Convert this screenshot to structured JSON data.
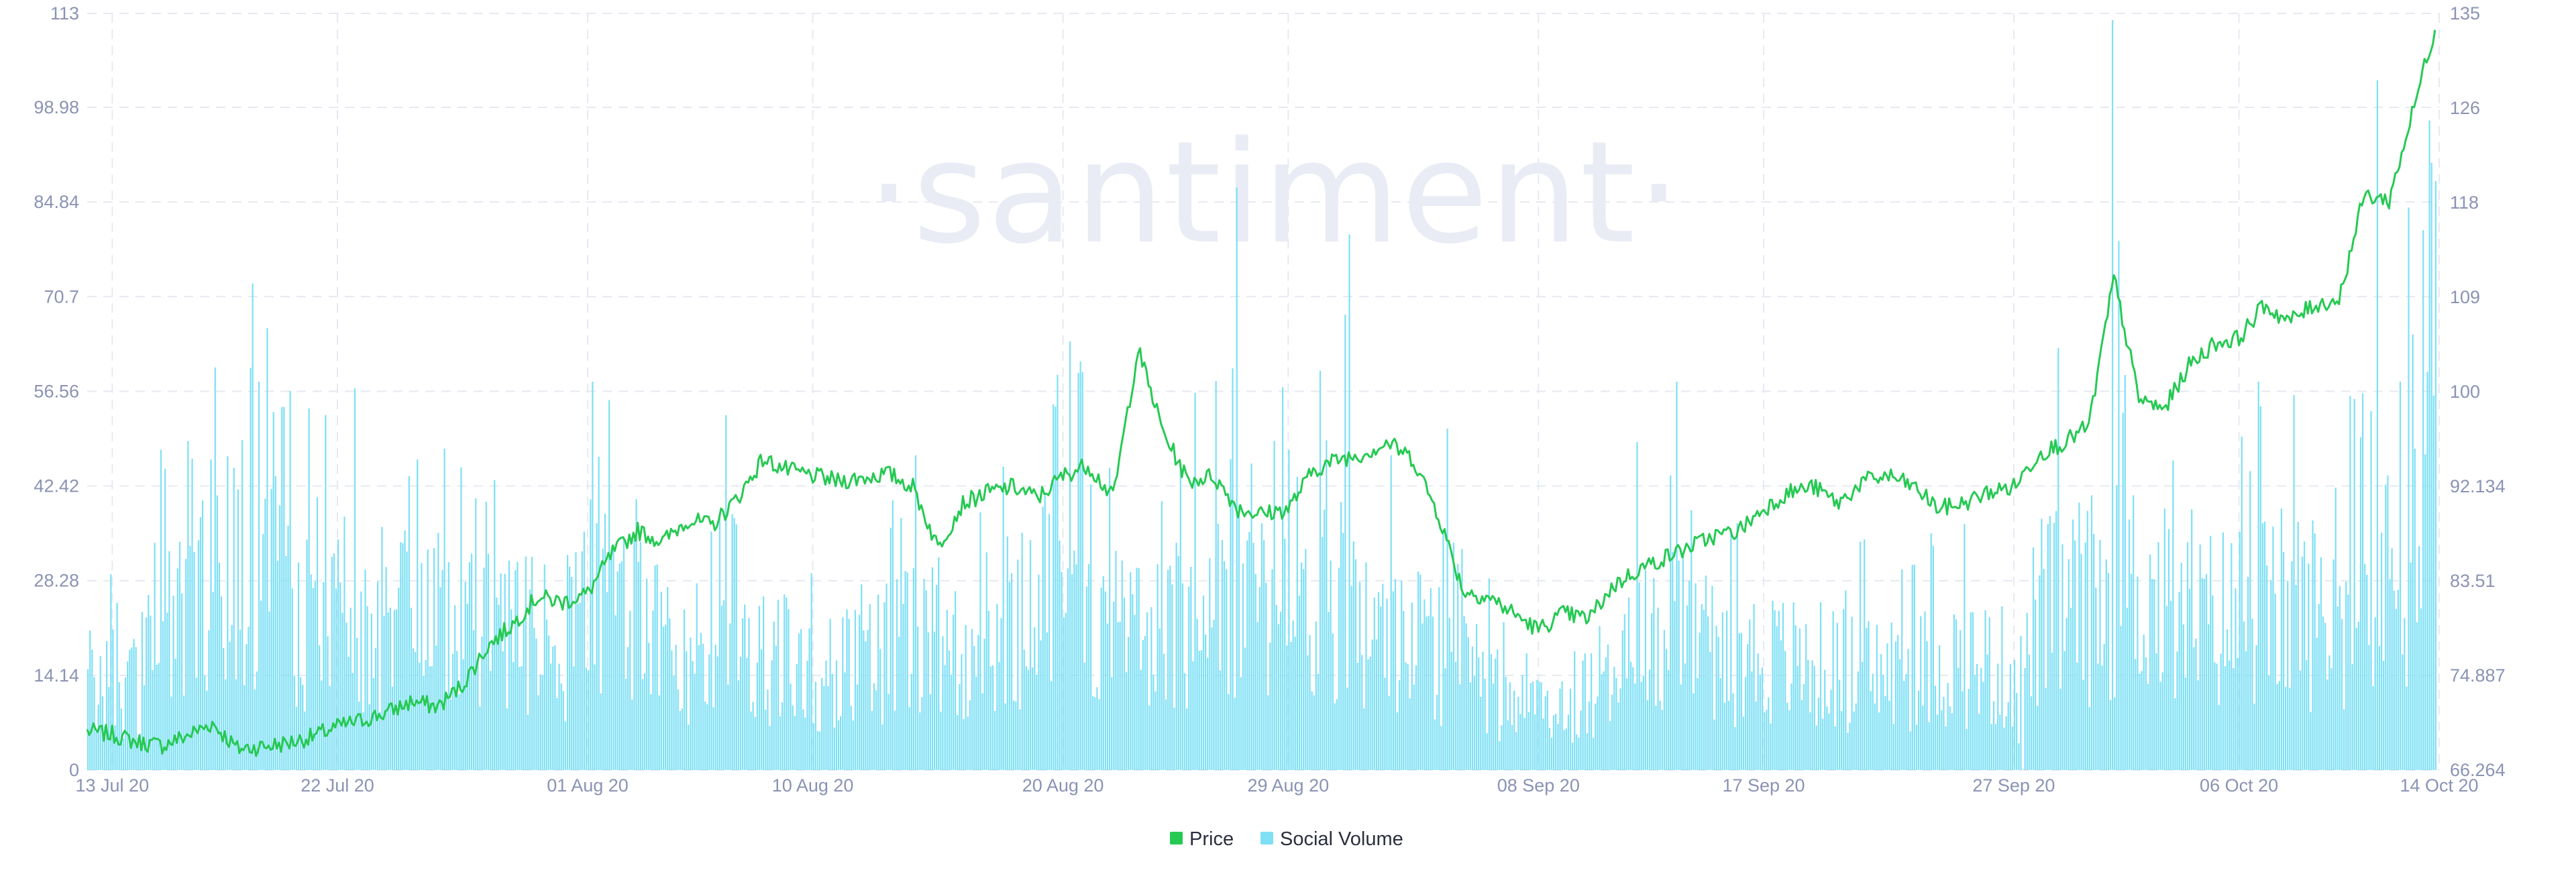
{
  "watermark": "·santiment·",
  "colors": {
    "price": "#26c953",
    "social_volume": "#7fe0f5",
    "grid": "#e6e9f1",
    "tick_text": "#8a93b4"
  },
  "chart_data": {
    "type": "bar+line",
    "title": "",
    "x_start": "2020-07-12",
    "x_end": "2020-10-14",
    "x_ticks": [
      "13 Jul 20",
      "22 Jul 20",
      "01 Aug 20",
      "10 Aug 20",
      "20 Aug 20",
      "29 Aug 20",
      "08 Sep 20",
      "17 Sep 20",
      "27 Sep 20",
      "06 Oct 20",
      "14 Oct 20"
    ],
    "left_axis": {
      "series": "Social Volume",
      "range": [
        0,
        113
      ],
      "ticks": [
        "0",
        "14.14",
        "28.28",
        "42.42",
        "56.56",
        "70.7",
        "84.84",
        "98.98",
        "113"
      ]
    },
    "right_axis": {
      "series": "Price",
      "range": [
        66.264,
        135
      ],
      "ticks": [
        "66.264",
        "74.887",
        "83.51",
        "92.134",
        "100",
        "109",
        "118",
        "126",
        "135"
      ]
    },
    "grid": true,
    "legend": {
      "position": "bottom-center",
      "items": [
        {
          "label": "Price",
          "color": "#26c953"
        },
        {
          "label": "Social Volume",
          "color": "#7fe0f5"
        }
      ]
    },
    "series": [
      {
        "name": "Social Volume",
        "type": "bar",
        "axis": "left",
        "resolution": "~2h",
        "keyframes": [
          [
            "2020-07-12",
            14
          ],
          [
            "2020-07-14",
            13
          ],
          [
            "2020-07-15",
            28
          ],
          [
            "2020-07-16",
            31
          ],
          [
            "2020-07-17",
            26
          ],
          [
            "2020-07-18",
            32
          ],
          [
            "2020-07-19",
            34
          ],
          [
            "2020-07-20",
            26
          ],
          [
            "2020-07-22",
            22
          ],
          [
            "2020-07-24",
            20
          ],
          [
            "2020-07-25",
            24
          ],
          [
            "2020-07-27",
            22
          ],
          [
            "2020-07-29",
            20
          ],
          [
            "2020-07-31",
            20
          ],
          [
            "2020-08-01",
            27
          ],
          [
            "2020-08-03",
            22
          ],
          [
            "2020-08-05",
            19
          ],
          [
            "2020-08-07",
            18
          ],
          [
            "2020-08-10",
            16
          ],
          [
            "2020-08-12",
            18
          ],
          [
            "2020-08-15",
            20
          ],
          [
            "2020-08-18",
            22
          ],
          [
            "2020-08-20",
            33
          ],
          [
            "2020-08-21",
            24
          ],
          [
            "2020-08-24",
            22
          ],
          [
            "2020-08-26",
            27
          ],
          [
            "2020-08-28",
            24
          ],
          [
            "2020-08-30",
            30
          ],
          [
            "2020-09-01",
            22
          ],
          [
            "2020-09-03",
            21
          ],
          [
            "2020-09-05",
            16
          ],
          [
            "2020-09-07",
            9
          ],
          [
            "2020-09-09",
            10
          ],
          [
            "2020-09-11",
            16
          ],
          [
            "2020-09-13",
            22
          ],
          [
            "2020-09-15",
            19
          ],
          [
            "2020-09-17",
            17
          ],
          [
            "2020-09-19",
            16
          ],
          [
            "2020-09-21",
            15
          ],
          [
            "2020-09-23",
            15
          ],
          [
            "2020-09-25",
            17
          ],
          [
            "2020-09-27",
            15
          ],
          [
            "2020-09-28",
            24
          ],
          [
            "2020-09-30",
            26
          ],
          [
            "2020-10-02",
            28
          ],
          [
            "2020-10-04",
            22
          ],
          [
            "2020-10-06",
            24
          ],
          [
            "2020-10-08",
            25
          ],
          [
            "2020-10-10",
            24
          ],
          [
            "2020-10-12",
            28
          ],
          [
            "2020-10-13",
            35
          ],
          [
            "2020-10-13T12:00",
            40
          ]
        ],
        "spikes": [
          [
            "2020-07-19T04:00",
            66
          ],
          [
            "2020-07-18T20:00",
            58
          ],
          [
            "2020-07-20T20:00",
            54
          ],
          [
            "2020-07-21T12:00",
            53
          ],
          [
            "2020-07-22T16:00",
            57
          ],
          [
            "2020-07-26T06:00",
            48
          ],
          [
            "2020-08-01T04:00",
            58
          ],
          [
            "2020-08-06T12:00",
            53
          ],
          [
            "2020-08-14T02:00",
            47
          ],
          [
            "2020-08-20T06:00",
            64
          ],
          [
            "2020-08-20T16:00",
            61
          ],
          [
            "2020-08-26T22:00",
            87
          ],
          [
            "2020-08-26T18:00",
            60
          ],
          [
            "2020-08-31T06:00",
            68
          ],
          [
            "2020-08-31T10:00",
            80
          ],
          [
            "2020-09-04T08:00",
            51
          ],
          [
            "2020-09-11T22:00",
            49
          ],
          [
            "2020-09-13T12:00",
            58
          ],
          [
            "2020-09-27T04:00",
            4
          ],
          [
            "2020-09-27T08:00",
            0
          ],
          [
            "2020-09-28T18:00",
            63
          ],
          [
            "2020-09-30T22:00",
            112
          ],
          [
            "2020-10-01T04:00",
            79
          ],
          [
            "2020-10-01T10:00",
            59
          ],
          [
            "2020-10-06T18:00",
            58
          ],
          [
            "2020-10-08T04:00",
            56
          ],
          [
            "2020-10-11T12:00",
            103
          ],
          [
            "2020-10-11T22:00",
            44
          ],
          [
            "2020-10-12T10:00",
            58
          ],
          [
            "2020-10-12T18:00",
            84
          ],
          [
            "2020-10-13T14:00",
            97
          ],
          [
            "2020-10-13T20:00",
            88
          ]
        ]
      },
      {
        "name": "Price",
        "type": "line",
        "axis": "right",
        "points": [
          [
            "2020-07-12",
            69.8
          ],
          [
            "2020-07-13",
            69.5
          ],
          [
            "2020-07-14",
            68.8
          ],
          [
            "2020-07-15",
            68.5
          ],
          [
            "2020-07-16",
            69.4
          ],
          [
            "2020-07-17",
            70.5
          ],
          [
            "2020-07-18",
            68.2
          ],
          [
            "2020-07-19",
            68.4
          ],
          [
            "2020-07-20",
            68.7
          ],
          [
            "2020-07-21",
            69.3
          ],
          [
            "2020-07-22",
            70.2
          ],
          [
            "2020-07-23",
            70.8
          ],
          [
            "2020-07-24",
            71.5
          ],
          [
            "2020-07-25",
            72.5
          ],
          [
            "2020-07-26",
            72.0
          ],
          [
            "2020-07-27",
            74.0
          ],
          [
            "2020-07-28",
            77.5
          ],
          [
            "2020-07-29",
            79.5
          ],
          [
            "2020-07-30",
            82.0
          ],
          [
            "2020-07-31",
            81.5
          ],
          [
            "2020-08-01",
            82.3
          ],
          [
            "2020-08-02",
            86.0
          ],
          [
            "2020-08-03",
            88.0
          ],
          [
            "2020-08-04",
            87.0
          ],
          [
            "2020-08-05",
            89.0
          ],
          [
            "2020-08-06",
            88.5
          ],
          [
            "2020-08-07",
            91.0
          ],
          [
            "2020-08-08",
            94.5
          ],
          [
            "2020-08-09",
            93.5
          ],
          [
            "2020-08-10",
            93.0
          ],
          [
            "2020-08-11",
            92.5
          ],
          [
            "2020-08-12",
            92.8
          ],
          [
            "2020-08-13",
            93.2
          ],
          [
            "2020-08-14",
            92.0
          ],
          [
            "2020-08-15",
            86.5
          ],
          [
            "2020-08-16",
            90.5
          ],
          [
            "2020-08-17",
            91.5
          ],
          [
            "2020-08-18",
            92.0
          ],
          [
            "2020-08-19",
            91.0
          ],
          [
            "2020-08-20",
            93.0
          ],
          [
            "2020-08-21",
            94.0
          ],
          [
            "2020-08-22",
            91.0
          ],
          [
            "2020-08-23",
            104.5
          ],
          [
            "2020-08-24",
            97.0
          ],
          [
            "2020-08-25",
            92.5
          ],
          [
            "2020-08-26",
            93.0
          ],
          [
            "2020-08-27",
            90.0
          ],
          [
            "2020-08-28",
            89.5
          ],
          [
            "2020-08-29",
            90.0
          ],
          [
            "2020-08-30",
            93.5
          ],
          [
            "2020-08-31",
            94.5
          ],
          [
            "2020-09-01",
            95.0
          ],
          [
            "2020-09-02",
            96.0
          ],
          [
            "2020-09-03",
            94.5
          ],
          [
            "2020-09-04",
            89.5
          ],
          [
            "2020-09-05",
            82.5
          ],
          [
            "2020-09-06",
            82.0
          ],
          [
            "2020-09-07",
            80.5
          ],
          [
            "2020-09-08",
            79.0
          ],
          [
            "2020-09-09",
            80.5
          ],
          [
            "2020-09-10",
            80.0
          ],
          [
            "2020-09-11",
            83.0
          ],
          [
            "2020-09-12",
            84.5
          ],
          [
            "2020-09-13",
            85.5
          ],
          [
            "2020-09-14",
            86.5
          ],
          [
            "2020-09-15",
            87.5
          ],
          [
            "2020-09-16",
            88.0
          ],
          [
            "2020-09-17",
            90.0
          ],
          [
            "2020-09-18",
            91.5
          ],
          [
            "2020-09-19",
            92.0
          ],
          [
            "2020-09-20",
            90.5
          ],
          [
            "2020-09-21",
            92.5
          ],
          [
            "2020-09-22",
            93.0
          ],
          [
            "2020-09-23",
            92.0
          ],
          [
            "2020-09-24",
            90.0
          ],
          [
            "2020-09-25",
            90.5
          ],
          [
            "2020-09-26",
            91.5
          ],
          [
            "2020-09-27",
            92.0
          ],
          [
            "2020-09-28",
            95.0
          ],
          [
            "2020-09-29",
            96.0
          ],
          [
            "2020-09-30",
            97.5
          ],
          [
            "2020-10-01",
            111.0
          ],
          [
            "2020-10-02",
            100.0
          ],
          [
            "2020-10-03",
            99.0
          ],
          [
            "2020-10-04",
            103.0
          ],
          [
            "2020-10-05",
            105.0
          ],
          [
            "2020-10-06",
            105.5
          ],
          [
            "2020-10-07",
            108.5
          ],
          [
            "2020-10-08",
            107.0
          ],
          [
            "2020-10-09",
            108.5
          ],
          [
            "2020-10-10",
            109.0
          ],
          [
            "2020-10-11",
            118.5
          ],
          [
            "2020-10-12",
            118.0
          ],
          [
            "2020-10-13",
            126.5
          ],
          [
            "2020-10-13T12:00",
            131.0
          ],
          [
            "2020-10-13T20:00",
            133.5
          ]
        ]
      }
    ]
  }
}
